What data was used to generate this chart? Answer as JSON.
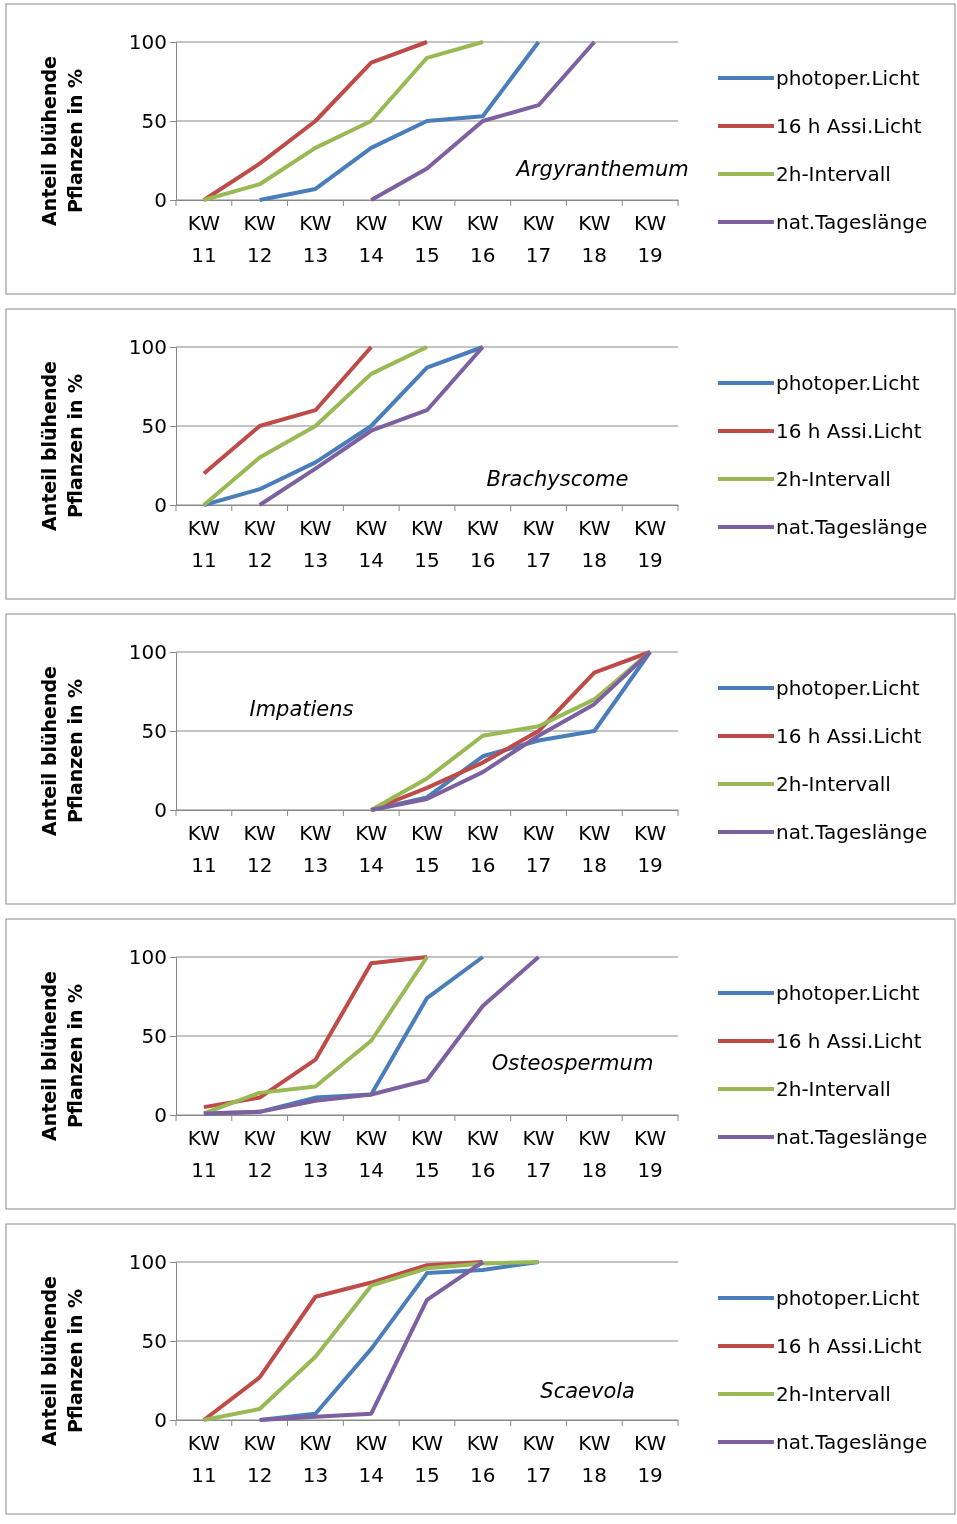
{
  "chart_data": [
    {
      "type": "line",
      "title": "Argyranthemum",
      "ylabel": "Anteil blühende Pflanzen in %",
      "categories": [
        "KW 11",
        "KW 12",
        "KW 13",
        "KW 14",
        "KW 15",
        "KW 16",
        "KW 17",
        "KW 18",
        "KW 19"
      ],
      "ylim": [
        0,
        100
      ],
      "yticks": [
        0,
        50,
        100
      ],
      "grid": "y",
      "legend": "right",
      "series": [
        {
          "name": "photoper.Licht",
          "color": "#4a7ebb",
          "values": [
            null,
            0,
            7,
            33,
            50,
            53,
            100,
            null,
            null
          ]
        },
        {
          "name": "16 h Assi.Licht",
          "color": "#be4b48",
          "values": [
            0,
            23,
            50,
            87,
            100,
            null,
            null,
            null,
            null
          ]
        },
        {
          "name": "2h-Intervall",
          "color": "#98b954",
          "values": [
            0,
            10,
            33,
            50,
            90,
            100,
            null,
            null,
            null
          ]
        },
        {
          "name": "nat.Tageslänge",
          "color": "#7d60a0",
          "values": [
            null,
            null,
            null,
            0,
            20,
            50,
            60,
            100,
            null
          ]
        }
      ]
    },
    {
      "type": "line",
      "title": "Brachyscome",
      "ylabel": "Anteil blühende Pflanzen in %",
      "categories": [
        "KW 11",
        "KW 12",
        "KW 13",
        "KW 14",
        "KW 15",
        "KW 16",
        "KW 17",
        "KW 18",
        "KW 19"
      ],
      "ylim": [
        0,
        100
      ],
      "yticks": [
        0,
        50,
        100
      ],
      "grid": "y",
      "legend": "right",
      "series": [
        {
          "name": "photoper.Licht",
          "color": "#4a7ebb",
          "values": [
            0,
            10,
            27,
            50,
            87,
            100,
            null,
            null,
            null
          ]
        },
        {
          "name": "16 h Assi.Licht",
          "color": "#be4b48",
          "values": [
            20,
            50,
            60,
            100,
            null,
            null,
            null,
            null,
            null
          ]
        },
        {
          "name": "2h-Intervall",
          "color": "#98b954",
          "values": [
            0,
            30,
            50,
            83,
            100,
            null,
            null,
            null,
            null
          ]
        },
        {
          "name": "nat.Tageslänge",
          "color": "#7d60a0",
          "values": [
            null,
            0,
            23,
            47,
            60,
            100,
            null,
            null,
            null
          ]
        }
      ]
    },
    {
      "type": "line",
      "title": "Impatiens",
      "ylabel": "Anteil blühende Pflanzen in %",
      "categories": [
        "KW 11",
        "KW 12",
        "KW 13",
        "KW 14",
        "KW 15",
        "KW 16",
        "KW 17",
        "KW 18",
        "KW 19"
      ],
      "ylim": [
        0,
        100
      ],
      "yticks": [
        0,
        50,
        100
      ],
      "grid": "y",
      "legend": "right",
      "series": [
        {
          "name": "photoper.Licht",
          "color": "#4a7ebb",
          "values": [
            null,
            null,
            null,
            0,
            8,
            34,
            44,
            50,
            100
          ]
        },
        {
          "name": "16 h Assi.Licht",
          "color": "#be4b48",
          "values": [
            null,
            null,
            null,
            0,
            14,
            30,
            50,
            87,
            100
          ]
        },
        {
          "name": "2h-Intervall",
          "color": "#98b954",
          "values": [
            null,
            null,
            null,
            0,
            20,
            47,
            53,
            70,
            100
          ]
        },
        {
          "name": "nat.Tageslänge",
          "color": "#7d60a0",
          "values": [
            null,
            null,
            null,
            0,
            7,
            24,
            47,
            67,
            100
          ]
        }
      ]
    },
    {
      "type": "line",
      "title": "Osteospermum",
      "ylabel": "Anteil blühende Pflanzen in %",
      "categories": [
        "KW 11",
        "KW 12",
        "KW 13",
        "KW 14",
        "KW 15",
        "KW 16",
        "KW 17",
        "KW 18",
        "KW 19"
      ],
      "ylim": [
        0,
        100
      ],
      "yticks": [
        0,
        50,
        100
      ],
      "grid": "y",
      "legend": "right",
      "series": [
        {
          "name": "photoper.Licht",
          "color": "#4a7ebb",
          "values": [
            1,
            2,
            11,
            13,
            74,
            100,
            null,
            null,
            null
          ]
        },
        {
          "name": "16 h Assi.Licht",
          "color": "#be4b48",
          "values": [
            5,
            11,
            35,
            96,
            100,
            null,
            null,
            null,
            null
          ]
        },
        {
          "name": "2h-Intervall",
          "color": "#98b954",
          "values": [
            1,
            14,
            18,
            47,
            100,
            null,
            null,
            null,
            null
          ]
        },
        {
          "name": "nat.Tageslänge",
          "color": "#7d60a0",
          "values": [
            1,
            2,
            9,
            13,
            22,
            69,
            100,
            null,
            null
          ]
        }
      ]
    },
    {
      "type": "line",
      "title": "Scaevola",
      "ylabel": "Anteil blühende Pflanzen in %",
      "categories": [
        "KW 11",
        "KW 12",
        "KW 13",
        "KW 14",
        "KW 15",
        "KW 16",
        "KW 17",
        "KW 18",
        "KW 19"
      ],
      "ylim": [
        0,
        100
      ],
      "yticks": [
        0,
        50,
        100
      ],
      "grid": "y",
      "legend": "right",
      "series": [
        {
          "name": "photoper.Licht",
          "color": "#4a7ebb",
          "values": [
            null,
            0,
            4,
            45,
            93,
            95,
            100,
            null,
            null
          ]
        },
        {
          "name": "16 h Assi.Licht",
          "color": "#be4b48",
          "values": [
            0,
            27,
            78,
            87,
            98,
            100,
            null,
            null,
            null
          ]
        },
        {
          "name": "2h-Intervall",
          "color": "#98b954",
          "values": [
            0,
            7,
            40,
            85,
            96,
            99,
            100,
            null,
            null
          ]
        },
        {
          "name": "nat.Tageslänge",
          "color": "#7d60a0",
          "values": [
            null,
            0,
            2,
            4,
            76,
            100,
            null,
            null,
            null
          ]
        }
      ]
    }
  ]
}
